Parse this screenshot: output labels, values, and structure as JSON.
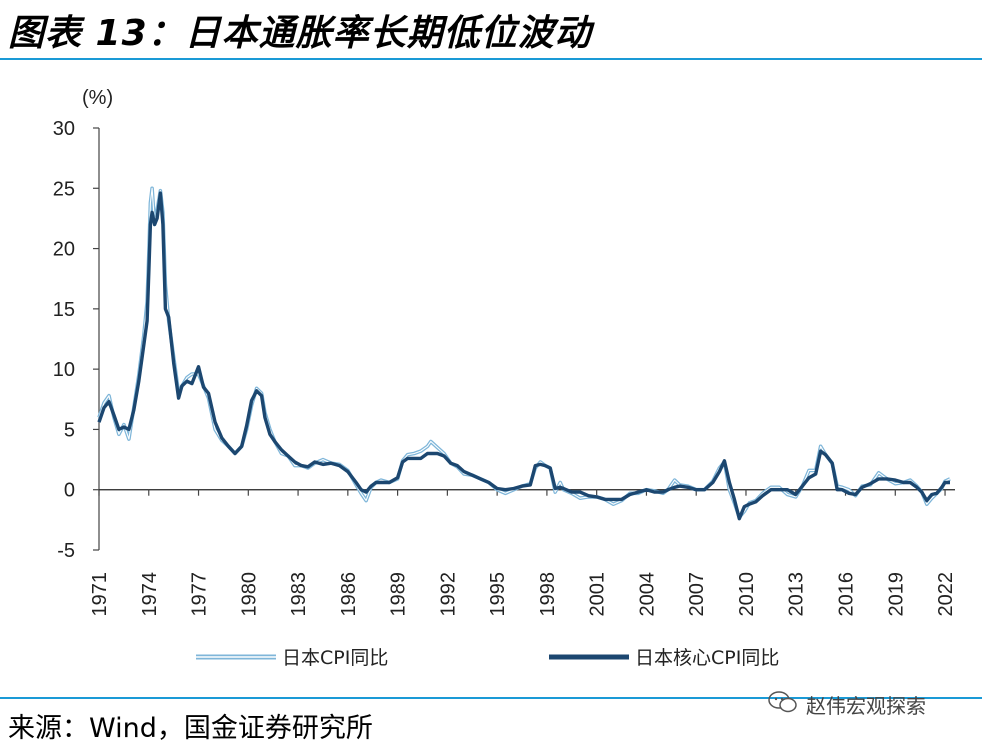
{
  "header": {
    "title": "图表 13：日本通胀率长期低位波动"
  },
  "footer": {
    "source": "来源：Wind，国金证券研究所",
    "watermark": "赵伟宏观探索"
  },
  "chart_data": {
    "type": "line",
    "title": "日本通胀率长期低位波动",
    "ylabel": "(%)",
    "xlabel": "",
    "ylim": [
      -5,
      30
    ],
    "yticks": [
      30,
      25,
      20,
      15,
      10,
      5,
      0,
      -5
    ],
    "xlim": [
      1971,
      2022.6
    ],
    "xticks": [
      "1971",
      "1974",
      "1977",
      "1980",
      "1983",
      "1986",
      "1989",
      "1992",
      "1995",
      "1998",
      "2001",
      "2004",
      "2007",
      "2010",
      "2013",
      "2016",
      "2019",
      "2022"
    ],
    "legend_position": "bottom",
    "series": [
      {
        "name": "日本CPI同比",
        "color": "#7fb6d9",
        "style": "double-outline",
        "points": [
          [
            1971.0,
            6.0
          ],
          [
            1971.3,
            7.2
          ],
          [
            1971.6,
            7.8
          ],
          [
            1971.9,
            6.0
          ],
          [
            1972.2,
            4.6
          ],
          [
            1972.5,
            5.4
          ],
          [
            1972.8,
            4.2
          ],
          [
            1973.1,
            6.8
          ],
          [
            1973.4,
            9.5
          ],
          [
            1973.7,
            12.8
          ],
          [
            1973.9,
            15.6
          ],
          [
            1974.0,
            19.5
          ],
          [
            1974.1,
            23.8
          ],
          [
            1974.2,
            25.0
          ],
          [
            1974.35,
            22.0
          ],
          [
            1974.5,
            23.2
          ],
          [
            1974.7,
            24.8
          ],
          [
            1974.85,
            23.0
          ],
          [
            1975.0,
            17.0
          ],
          [
            1975.2,
            14.0
          ],
          [
            1975.5,
            11.0
          ],
          [
            1975.8,
            8.0
          ],
          [
            1976.0,
            8.6
          ],
          [
            1976.3,
            9.3
          ],
          [
            1976.6,
            9.6
          ],
          [
            1977.0,
            9.6
          ],
          [
            1977.3,
            8.6
          ],
          [
            1977.6,
            7.6
          ],
          [
            1978.0,
            5.0
          ],
          [
            1978.4,
            4.1
          ],
          [
            1978.8,
            3.6
          ],
          [
            1979.2,
            3.0
          ],
          [
            1979.6,
            3.6
          ],
          [
            1979.9,
            5.0
          ],
          [
            1980.2,
            7.0
          ],
          [
            1980.5,
            8.4
          ],
          [
            1980.8,
            8.0
          ],
          [
            1981.0,
            6.4
          ],
          [
            1981.3,
            5.0
          ],
          [
            1981.6,
            4.0
          ],
          [
            1982.0,
            3.0
          ],
          [
            1982.4,
            2.8
          ],
          [
            1982.8,
            2.0
          ],
          [
            1983.2,
            2.0
          ],
          [
            1983.6,
            1.8
          ],
          [
            1984.0,
            2.2
          ],
          [
            1984.5,
            2.5
          ],
          [
            1985.0,
            2.2
          ],
          [
            1985.5,
            2.1
          ],
          [
            1986.0,
            1.6
          ],
          [
            1986.5,
            0.4
          ],
          [
            1986.8,
            -0.3
          ],
          [
            1987.1,
            -0.9
          ],
          [
            1987.4,
            0.2
          ],
          [
            1987.7,
            0.6
          ],
          [
            1988.0,
            0.8
          ],
          [
            1988.5,
            0.6
          ],
          [
            1989.0,
            0.9
          ],
          [
            1989.3,
            2.4
          ],
          [
            1989.6,
            2.9
          ],
          [
            1990.0,
            3.0
          ],
          [
            1990.4,
            3.2
          ],
          [
            1990.8,
            3.6
          ],
          [
            1991.0,
            4.0
          ],
          [
            1991.4,
            3.5
          ],
          [
            1991.8,
            3.0
          ],
          [
            1992.2,
            2.2
          ],
          [
            1992.6,
            1.9
          ],
          [
            1993.0,
            1.3
          ],
          [
            1993.5,
            1.2
          ],
          [
            1994.0,
            0.9
          ],
          [
            1994.5,
            0.6
          ],
          [
            1995.0,
            0.0
          ],
          [
            1995.5,
            -0.3
          ],
          [
            1996.0,
            0.0
          ],
          [
            1996.5,
            0.3
          ],
          [
            1997.0,
            0.5
          ],
          [
            1997.3,
            1.8
          ],
          [
            1997.6,
            2.3
          ],
          [
            1997.9,
            2.0
          ],
          [
            1998.2,
            1.8
          ],
          [
            1998.5,
            -0.2
          ],
          [
            1998.8,
            0.6
          ],
          [
            1999.0,
            0.0
          ],
          [
            1999.5,
            -0.3
          ],
          [
            2000.0,
            -0.7
          ],
          [
            2000.5,
            -0.6
          ],
          [
            2001.0,
            -0.6
          ],
          [
            2001.5,
            -0.8
          ],
          [
            2002.0,
            -1.2
          ],
          [
            2002.5,
            -0.9
          ],
          [
            2003.0,
            -0.3
          ],
          [
            2003.5,
            -0.3
          ],
          [
            2004.0,
            0.0
          ],
          [
            2004.5,
            -0.1
          ],
          [
            2005.0,
            -0.3
          ],
          [
            2005.3,
            0.0
          ],
          [
            2005.7,
            0.8
          ],
          [
            2006.0,
            0.4
          ],
          [
            2006.5,
            0.3
          ],
          [
            2007.0,
            0.0
          ],
          [
            2007.5,
            0.0
          ],
          [
            2008.0,
            0.7
          ],
          [
            2008.4,
            1.8
          ],
          [
            2008.7,
            2.3
          ],
          [
            2009.0,
            0.0
          ],
          [
            2009.3,
            -1.1
          ],
          [
            2009.6,
            -2.3
          ],
          [
            2009.9,
            -1.8
          ],
          [
            2010.2,
            -1.1
          ],
          [
            2010.6,
            -0.9
          ],
          [
            2011.0,
            -0.3
          ],
          [
            2011.5,
            0.2
          ],
          [
            2012.0,
            0.2
          ],
          [
            2012.5,
            -0.4
          ],
          [
            2013.0,
            -0.6
          ],
          [
            2013.4,
            0.3
          ],
          [
            2013.8,
            1.6
          ],
          [
            2014.2,
            1.6
          ],
          [
            2014.5,
            3.6
          ],
          [
            2014.8,
            2.9
          ],
          [
            2015.2,
            2.2
          ],
          [
            2015.5,
            0.3
          ],
          [
            2015.8,
            0.2
          ],
          [
            2016.2,
            0.0
          ],
          [
            2016.6,
            -0.5
          ],
          [
            2017.0,
            0.3
          ],
          [
            2017.5,
            0.4
          ],
          [
            2018.0,
            1.4
          ],
          [
            2018.5,
            0.9
          ],
          [
            2019.0,
            0.5
          ],
          [
            2019.5,
            0.6
          ],
          [
            2019.9,
            0.8
          ],
          [
            2020.3,
            0.3
          ],
          [
            2020.6,
            -0.2
          ],
          [
            2020.9,
            -1.2
          ],
          [
            2021.2,
            -0.7
          ],
          [
            2021.5,
            -0.3
          ],
          [
            2021.8,
            0.1
          ],
          [
            2022.0,
            0.7
          ],
          [
            2022.3,
            0.9
          ]
        ]
      },
      {
        "name": "日本核心CPI同比",
        "color": "#1c4770",
        "style": "solid-thick",
        "points": [
          [
            1971.0,
            5.6
          ],
          [
            1971.3,
            6.8
          ],
          [
            1971.6,
            7.3
          ],
          [
            1971.9,
            6.2
          ],
          [
            1972.2,
            5.0
          ],
          [
            1972.5,
            5.2
          ],
          [
            1972.8,
            5.0
          ],
          [
            1973.1,
            6.6
          ],
          [
            1973.4,
            9.0
          ],
          [
            1973.7,
            12.0
          ],
          [
            1973.9,
            14.0
          ],
          [
            1974.0,
            18.0
          ],
          [
            1974.1,
            22.0
          ],
          [
            1974.2,
            23.0
          ],
          [
            1974.35,
            22.0
          ],
          [
            1974.5,
            22.5
          ],
          [
            1974.7,
            24.6
          ],
          [
            1974.85,
            22.0
          ],
          [
            1975.0,
            15.0
          ],
          [
            1975.2,
            14.3
          ],
          [
            1975.5,
            10.5
          ],
          [
            1975.8,
            7.6
          ],
          [
            1976.0,
            8.6
          ],
          [
            1976.3,
            9.0
          ],
          [
            1976.6,
            8.8
          ],
          [
            1977.0,
            10.2
          ],
          [
            1977.3,
            8.5
          ],
          [
            1977.6,
            8.0
          ],
          [
            1978.0,
            5.6
          ],
          [
            1978.4,
            4.3
          ],
          [
            1978.8,
            3.6
          ],
          [
            1979.2,
            3.0
          ],
          [
            1979.6,
            3.6
          ],
          [
            1979.9,
            5.3
          ],
          [
            1980.2,
            7.4
          ],
          [
            1980.5,
            8.2
          ],
          [
            1980.8,
            7.8
          ],
          [
            1981.0,
            6.0
          ],
          [
            1981.3,
            4.6
          ],
          [
            1981.6,
            4.0
          ],
          [
            1982.0,
            3.3
          ],
          [
            1982.4,
            2.8
          ],
          [
            1982.8,
            2.3
          ],
          [
            1983.2,
            2.0
          ],
          [
            1983.6,
            1.9
          ],
          [
            1984.0,
            2.3
          ],
          [
            1984.5,
            2.1
          ],
          [
            1985.0,
            2.2
          ],
          [
            1985.5,
            2.0
          ],
          [
            1986.0,
            1.5
          ],
          [
            1986.5,
            0.6
          ],
          [
            1986.8,
            0.0
          ],
          [
            1987.1,
            -0.2
          ],
          [
            1987.4,
            0.3
          ],
          [
            1987.7,
            0.6
          ],
          [
            1988.0,
            0.6
          ],
          [
            1988.5,
            0.6
          ],
          [
            1989.0,
            1.0
          ],
          [
            1989.3,
            2.3
          ],
          [
            1989.6,
            2.6
          ],
          [
            1990.0,
            2.6
          ],
          [
            1990.4,
            2.6
          ],
          [
            1990.8,
            3.0
          ],
          [
            1991.0,
            3.0
          ],
          [
            1991.4,
            3.0
          ],
          [
            1991.8,
            2.8
          ],
          [
            1992.2,
            2.2
          ],
          [
            1992.6,
            2.0
          ],
          [
            1993.0,
            1.5
          ],
          [
            1993.5,
            1.2
          ],
          [
            1994.0,
            0.9
          ],
          [
            1994.5,
            0.6
          ],
          [
            1995.0,
            0.1
          ],
          [
            1995.5,
            0.0
          ],
          [
            1996.0,
            0.1
          ],
          [
            1996.5,
            0.3
          ],
          [
            1997.0,
            0.4
          ],
          [
            1997.3,
            2.0
          ],
          [
            1997.6,
            2.1
          ],
          [
            1997.9,
            2.0
          ],
          [
            1998.2,
            1.8
          ],
          [
            1998.5,
            0.1
          ],
          [
            1998.8,
            0.2
          ],
          [
            1999.0,
            0.1
          ],
          [
            1999.5,
            -0.2
          ],
          [
            2000.0,
            -0.2
          ],
          [
            2000.5,
            -0.5
          ],
          [
            2001.0,
            -0.6
          ],
          [
            2001.5,
            -0.8
          ],
          [
            2002.0,
            -0.8
          ],
          [
            2002.5,
            -0.8
          ],
          [
            2003.0,
            -0.4
          ],
          [
            2003.5,
            -0.2
          ],
          [
            2004.0,
            0.0
          ],
          [
            2004.5,
            -0.2
          ],
          [
            2005.0,
            -0.2
          ],
          [
            2005.3,
            0.0
          ],
          [
            2005.7,
            0.2
          ],
          [
            2006.0,
            0.3
          ],
          [
            2006.5,
            0.2
          ],
          [
            2007.0,
            0.0
          ],
          [
            2007.5,
            0.0
          ],
          [
            2008.0,
            0.6
          ],
          [
            2008.4,
            1.5
          ],
          [
            2008.7,
            2.4
          ],
          [
            2009.0,
            0.6
          ],
          [
            2009.3,
            -0.8
          ],
          [
            2009.6,
            -2.4
          ],
          [
            2009.9,
            -1.4
          ],
          [
            2010.2,
            -1.2
          ],
          [
            2010.6,
            -1.0
          ],
          [
            2011.0,
            -0.5
          ],
          [
            2011.5,
            0.0
          ],
          [
            2012.0,
            0.0
          ],
          [
            2012.5,
            0.0
          ],
          [
            2013.0,
            -0.4
          ],
          [
            2013.4,
            0.3
          ],
          [
            2013.8,
            1.0
          ],
          [
            2014.2,
            1.3
          ],
          [
            2014.5,
            3.2
          ],
          [
            2014.8,
            2.9
          ],
          [
            2015.2,
            2.2
          ],
          [
            2015.5,
            0.0
          ],
          [
            2015.8,
            0.0
          ],
          [
            2016.2,
            -0.3
          ],
          [
            2016.6,
            -0.4
          ],
          [
            2017.0,
            0.2
          ],
          [
            2017.5,
            0.5
          ],
          [
            2018.0,
            0.9
          ],
          [
            2018.5,
            0.9
          ],
          [
            2019.0,
            0.8
          ],
          [
            2019.5,
            0.6
          ],
          [
            2019.9,
            0.6
          ],
          [
            2020.3,
            0.2
          ],
          [
            2020.6,
            -0.2
          ],
          [
            2020.9,
            -0.9
          ],
          [
            2021.2,
            -0.4
          ],
          [
            2021.5,
            -0.3
          ],
          [
            2021.8,
            0.2
          ],
          [
            2022.0,
            0.6
          ],
          [
            2022.3,
            0.6
          ]
        ]
      }
    ]
  }
}
